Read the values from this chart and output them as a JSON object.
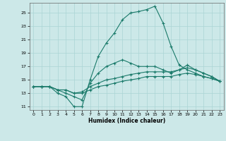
{
  "xlabel": "Humidex (Indice chaleur)",
  "bg_color": "#cce8e8",
  "grid_color": "#aad4d4",
  "line_color": "#1a7a6a",
  "xlim": [
    -0.5,
    23.5
  ],
  "ylim": [
    10.5,
    26.5
  ],
  "xticks": [
    0,
    1,
    2,
    3,
    4,
    5,
    6,
    7,
    8,
    9,
    10,
    11,
    12,
    13,
    14,
    15,
    16,
    17,
    18,
    19,
    20,
    21,
    22,
    23
  ],
  "yticks": [
    11,
    13,
    15,
    17,
    19,
    21,
    23,
    25
  ],
  "lines": [
    {
      "x": [
        0,
        1,
        2,
        3,
        4,
        5,
        6,
        7,
        8,
        9,
        10,
        11,
        12,
        13,
        14,
        15,
        16,
        17,
        18,
        19,
        20,
        21,
        22,
        23
      ],
      "y": [
        14,
        14,
        14,
        13,
        12.5,
        11,
        11,
        15,
        18.5,
        20.5,
        22,
        24,
        25,
        25.2,
        25.5,
        26,
        23.5,
        20,
        17.2,
        16.5,
        16,
        15.5,
        15.2,
        14.8
      ]
    },
    {
      "x": [
        0,
        1,
        2,
        3,
        4,
        5,
        6,
        7,
        8,
        9,
        10,
        11,
        12,
        13,
        14,
        15,
        16,
        17,
        18,
        19,
        20,
        21,
        22,
        23
      ],
      "y": [
        14,
        14,
        14,
        13.5,
        13,
        12.5,
        12,
        14.5,
        16,
        17,
        17.5,
        18,
        17.5,
        17,
        17,
        17,
        16.5,
        16,
        16.5,
        17.2,
        16.5,
        16,
        15.5,
        14.8
      ]
    },
    {
      "x": [
        0,
        1,
        2,
        3,
        4,
        5,
        6,
        7,
        8,
        9,
        10,
        11,
        12,
        13,
        14,
        15,
        16,
        17,
        18,
        19,
        20,
        21,
        22,
        23
      ],
      "y": [
        14,
        14,
        14,
        13.5,
        13.5,
        13,
        13.2,
        14,
        14.5,
        15,
        15.2,
        15.5,
        15.8,
        16,
        16.2,
        16.2,
        16.2,
        16.2,
        16.5,
        16.8,
        16.5,
        16,
        15.5,
        14.8
      ]
    },
    {
      "x": [
        0,
        1,
        2,
        3,
        4,
        5,
        6,
        7,
        8,
        9,
        10,
        11,
        12,
        13,
        14,
        15,
        16,
        17,
        18,
        19,
        20,
        21,
        22,
        23
      ],
      "y": [
        14,
        14,
        14,
        13.5,
        13.5,
        13,
        13,
        13.5,
        14,
        14.2,
        14.5,
        14.8,
        15,
        15.2,
        15.5,
        15.5,
        15.5,
        15.5,
        15.8,
        16,
        15.8,
        15.5,
        15.2,
        14.8
      ]
    }
  ]
}
